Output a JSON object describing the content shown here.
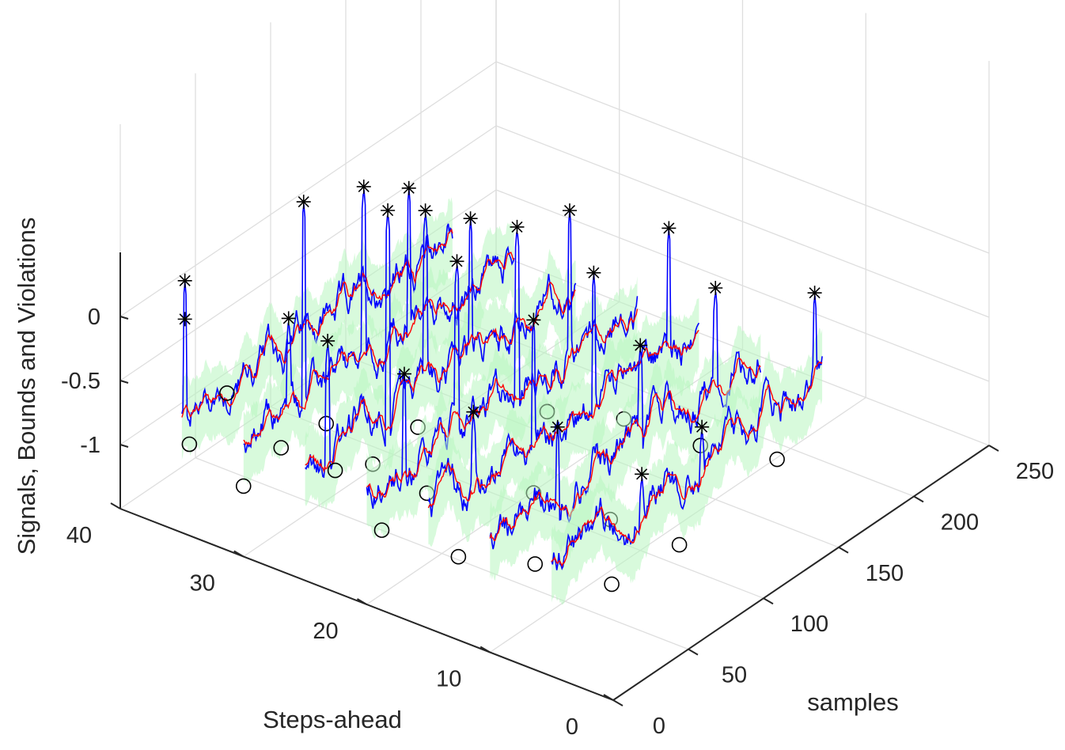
{
  "chart_data": {
    "type": "line",
    "subtype": "3d-waterfall",
    "title": "",
    "xlabel": "samples",
    "ylabel": "Steps-ahead",
    "zlabel": "Signals, Bounds and Violations",
    "x_ticks": [
      "0",
      "50",
      "100",
      "150",
      "200",
      "250"
    ],
    "y_ticks": [
      "0",
      "10",
      "20",
      "30",
      "40"
    ],
    "z_ticks": [
      "-1",
      "-0.5",
      "0"
    ],
    "xlim": [
      0,
      250
    ],
    "ylim": [
      0,
      40
    ],
    "zlim": [
      -1.5,
      0.5
    ],
    "grid": true,
    "colors": {
      "signal": "#0000ff",
      "bound": "#ff0000",
      "band": "#b8f5c0",
      "upper_violation": "#000000",
      "lower_violation": "#000000",
      "grid": "#dedede",
      "axis": "#262626"
    },
    "series_marks": [
      {
        "style": "line",
        "color": "#0000ff"
      },
      {
        "style": "line",
        "color": "#ff0000"
      },
      {
        "style": "band",
        "color": "#b8f5c0"
      },
      {
        "style": "marker-asterisk",
        "color": "#000000"
      },
      {
        "style": "marker-circle",
        "color": "#000000"
      }
    ],
    "steps": [
      5,
      10,
      15,
      20,
      25,
      30,
      35
    ],
    "samples_range": [
      0,
      180
    ],
    "baseline": -0.6,
    "upper_violation_peaks": [
      {
        "step": 35,
        "sample": 2,
        "z": 0.45
      },
      {
        "step": 35,
        "sample": 2,
        "z": 0.15
      },
      {
        "step": 30,
        "sample": 30,
        "z": 0.12
      },
      {
        "step": 30,
        "sample": 40,
        "z": 0.95
      },
      {
        "step": 30,
        "sample": 80,
        "z": 0.75
      },
      {
        "step": 30,
        "sample": 110,
        "z": 0.5
      },
      {
        "step": 25,
        "sample": 15,
        "z": 0.25
      },
      {
        "step": 25,
        "sample": 55,
        "z": 0.95
      },
      {
        "step": 25,
        "sample": 80,
        "z": 0.75
      },
      {
        "step": 25,
        "sample": 110,
        "z": 0.45
      },
      {
        "step": 20,
        "sample": 25,
        "z": 0.1
      },
      {
        "step": 20,
        "sample": 60,
        "z": 0.7
      },
      {
        "step": 20,
        "sample": 100,
        "z": 0.65
      },
      {
        "step": 20,
        "sample": 135,
        "z": 0.5
      },
      {
        "step": 15,
        "sample": 30,
        "z": -0.05
      },
      {
        "step": 15,
        "sample": 70,
        "z": 0.35
      },
      {
        "step": 15,
        "sample": 110,
        "z": 0.4
      },
      {
        "step": 15,
        "sample": 160,
        "z": 0.35
      },
      {
        "step": 10,
        "sample": 45,
        "z": -0.1
      },
      {
        "step": 10,
        "sample": 100,
        "z": 0.1
      },
      {
        "step": 10,
        "sample": 150,
        "z": 0.15
      },
      {
        "step": 5,
        "sample": 60,
        "z": -0.4
      },
      {
        "step": 5,
        "sample": 100,
        "z": -0.35
      },
      {
        "step": 5,
        "sample": 175,
        "z": 0.1
      }
    ],
    "lower_violation_points": [
      {
        "step": 35,
        "sample": 5,
        "z": -0.85
      },
      {
        "step": 35,
        "sample": 30,
        "z": -0.65
      },
      {
        "step": 30,
        "sample": 0,
        "z": -0.95
      },
      {
        "step": 30,
        "sample": 25,
        "z": -0.85
      },
      {
        "step": 30,
        "sample": 55,
        "z": -0.9
      },
      {
        "step": 25,
        "sample": 20,
        "z": -0.8
      },
      {
        "step": 25,
        "sample": 45,
        "z": -0.95
      },
      {
        "step": 25,
        "sample": 75,
        "z": -0.9
      },
      {
        "step": 20,
        "sample": 10,
        "z": -1.0
      },
      {
        "step": 20,
        "sample": 40,
        "z": -0.95
      },
      {
        "step": 20,
        "sample": 120,
        "z": -0.95
      },
      {
        "step": 15,
        "sample": 20,
        "z": -1.1
      },
      {
        "step": 15,
        "sample": 70,
        "z": -1.0
      },
      {
        "step": 15,
        "sample": 130,
        "z": -0.9
      },
      {
        "step": 10,
        "sample": 30,
        "z": -1.05
      },
      {
        "step": 10,
        "sample": 80,
        "z": -1.1
      },
      {
        "step": 10,
        "sample": 140,
        "z": -1.0
      },
      {
        "step": 5,
        "sample": 40,
        "z": -1.1
      },
      {
        "step": 5,
        "sample": 85,
        "z": -1.15
      },
      {
        "step": 5,
        "sample": 150,
        "z": -1.0
      }
    ]
  }
}
